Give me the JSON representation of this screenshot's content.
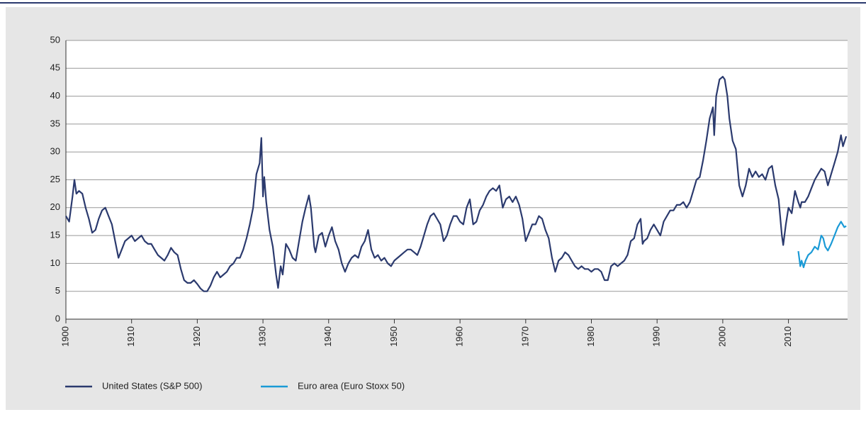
{
  "chart_data": {
    "type": "line",
    "xlim": [
      1900,
      2019
    ],
    "ylim": [
      0,
      50
    ],
    "xticks": [
      1900,
      1910,
      1920,
      1930,
      1940,
      1950,
      1960,
      1970,
      1980,
      1990,
      2000,
      2010
    ],
    "yticks": [
      0,
      5,
      10,
      15,
      20,
      25,
      30,
      35,
      40,
      45,
      50
    ],
    "grid": true,
    "legend": "bottom",
    "series": [
      {
        "name": "United States (S&P 500)",
        "color": "#2b3a6e",
        "x": [
          1900,
          1900.5,
          1901,
          1901.3,
          1901.6,
          1902,
          1902.5,
          1903,
          1903.5,
          1904,
          1904.5,
          1905,
          1905.5,
          1906,
          1906.5,
          1907,
          1907.5,
          1908,
          1908.5,
          1909,
          1909.5,
          1910,
          1910.5,
          1911,
          1911.5,
          1912,
          1912.5,
          1913,
          1913.5,
          1914,
          1914.5,
          1915,
          1915.5,
          1916,
          1916.5,
          1917,
          1917.5,
          1918,
          1918.5,
          1919,
          1919.5,
          1920,
          1920.5,
          1921,
          1921.5,
          1922,
          1922.5,
          1923,
          1923.5,
          1924,
          1924.5,
          1925,
          1925.5,
          1926,
          1926.5,
          1927,
          1927.5,
          1928,
          1928.5,
          1929,
          1929.5,
          1929.75,
          1930,
          1930.2,
          1930.5,
          1931,
          1931.5,
          1932,
          1932.3,
          1932.7,
          1933,
          1933.5,
          1934,
          1934.5,
          1935,
          1935.5,
          1936,
          1936.5,
          1937,
          1937.3,
          1937.8,
          1938,
          1938.5,
          1939,
          1939.5,
          1940,
          1940.5,
          1941,
          1941.5,
          1942,
          1942.5,
          1943,
          1943.5,
          1944,
          1944.5,
          1945,
          1945.5,
          1946,
          1946.5,
          1947,
          1947.5,
          1948,
          1948.5,
          1949,
          1949.5,
          1950,
          1950.5,
          1951,
          1951.5,
          1952,
          1952.5,
          1953,
          1953.5,
          1954,
          1954.5,
          1955,
          1955.5,
          1956,
          1956.5,
          1957,
          1957.5,
          1958,
          1958.5,
          1959,
          1959.5,
          1960,
          1960.5,
          1961,
          1961.5,
          1962,
          1962.5,
          1963,
          1963.5,
          1964,
          1964.5,
          1965,
          1965.5,
          1966,
          1966.5,
          1967,
          1967.5,
          1968,
          1968.5,
          1969,
          1969.5,
          1970,
          1970.5,
          1971,
          1971.5,
          1972,
          1972.5,
          1973,
          1973.5,
          1974,
          1974.5,
          1975,
          1975.5,
          1976,
          1976.5,
          1977,
          1977.5,
          1978,
          1978.5,
          1979,
          1979.5,
          1980,
          1980.5,
          1981,
          1981.5,
          1982,
          1982.5,
          1983,
          1983.5,
          1984,
          1984.5,
          1985,
          1985.5,
          1986,
          1986.5,
          1987,
          1987.5,
          1987.8,
          1988,
          1988.5,
          1989,
          1989.5,
          1990,
          1990.5,
          1991,
          1991.5,
          1992,
          1992.5,
          1993,
          1993.5,
          1994,
          1994.5,
          1995,
          1995.5,
          1996,
          1996.5,
          1997,
          1997.5,
          1998,
          1998.5,
          1998.7,
          1999,
          1999.5,
          2000,
          2000.3,
          2000.7,
          2001,
          2001.5,
          2002,
          2002.5,
          2003,
          2003.5,
          2004,
          2004.5,
          2005,
          2005.5,
          2006,
          2006.5,
          2007,
          2007.5,
          2008,
          2008.5,
          2009,
          2009.2,
          2009.6,
          2010,
          2010.5,
          2011,
          2011.5,
          2011.8,
          2012,
          2012.5,
          2013,
          2013.5,
          2014,
          2014.5,
          2015,
          2015.5,
          2016,
          2016.5,
          2017,
          2017.5,
          2018,
          2018.3,
          2018.8
        ],
        "values": [
          18.5,
          17.5,
          22,
          25,
          22.5,
          23,
          22.5,
          20,
          18,
          15.5,
          16,
          18,
          19.5,
          20,
          18.5,
          17,
          14,
          11,
          12.5,
          14,
          14.5,
          15,
          14,
          14.5,
          15,
          14,
          13.5,
          13.5,
          12.5,
          11.5,
          11,
          10.5,
          11.5,
          12.8,
          12,
          11.5,
          9,
          7,
          6.5,
          6.5,
          7,
          6.3,
          5.5,
          5,
          5,
          6,
          7.5,
          8.5,
          7.5,
          8,
          8.5,
          9.5,
          10,
          11,
          11,
          12.5,
          14.5,
          17,
          20,
          26,
          28,
          32.5,
          22,
          25.5,
          21,
          16,
          13,
          8,
          5.6,
          9.5,
          8,
          13.5,
          12.5,
          11,
          10.5,
          14,
          17.5,
          20,
          22.2,
          20,
          13,
          12,
          15,
          15.5,
          13,
          15,
          16.5,
          14,
          12.5,
          10,
          8.5,
          10,
          11,
          11.5,
          11,
          13,
          14,
          16,
          12.5,
          11,
          11.5,
          10.5,
          11,
          10,
          9.5,
          10.5,
          11,
          11.5,
          12,
          12.5,
          12.5,
          12,
          11.5,
          13,
          15,
          17,
          18.5,
          19,
          18,
          17,
          14,
          15,
          17,
          18.5,
          18.5,
          17.5,
          17,
          20,
          21.5,
          17,
          17.5,
          19.5,
          20.5,
          22,
          23,
          23.5,
          23,
          24,
          20,
          21.5,
          22,
          21,
          22,
          20.5,
          18,
          14,
          15.5,
          17,
          17,
          18.5,
          18,
          16,
          14.5,
          11,
          8.5,
          10.5,
          11,
          12,
          11.5,
          10.5,
          9.5,
          9,
          9.5,
          9,
          9,
          8.5,
          9,
          9,
          8.5,
          7,
          7,
          9.5,
          10,
          9.5,
          10,
          10.5,
          11.5,
          14,
          14.5,
          17,
          18,
          13.5,
          14,
          14.5,
          16,
          17,
          16,
          15,
          17.5,
          18.5,
          19.5,
          19.5,
          20.5,
          20.5,
          21,
          20,
          21,
          23,
          25,
          25.5,
          28.5,
          32,
          36,
          38,
          33,
          40,
          43,
          43.5,
          43,
          40,
          36,
          32,
          30.5,
          24,
          22,
          24,
          27,
          25.5,
          26.5,
          25.5,
          26,
          25,
          27,
          27.5,
          24,
          21.5,
          15,
          13.3,
          17,
          20,
          19,
          23,
          21,
          20,
          21,
          21,
          22,
          23.5,
          25,
          26,
          27,
          26.5,
          24,
          26,
          28,
          30,
          33,
          31,
          32.8
        ]
      },
      {
        "name": "Euro area (Euro Stoxx 50)",
        "color": "#1a9ad6",
        "x": [
          2011.5,
          2011.8,
          2012,
          2012.3,
          2012.6,
          2013,
          2013.5,
          2014,
          2014.5,
          2015,
          2015.3,
          2015.6,
          2016,
          2016.5,
          2017,
          2017.5,
          2018,
          2018.5,
          2018.8
        ],
        "values": [
          12.2,
          9.5,
          10.5,
          9.3,
          10.5,
          11.5,
          12,
          13,
          12.5,
          15,
          14.5,
          13,
          12.3,
          13.5,
          15,
          16.5,
          17.5,
          16.5,
          16.7
        ]
      }
    ]
  }
}
